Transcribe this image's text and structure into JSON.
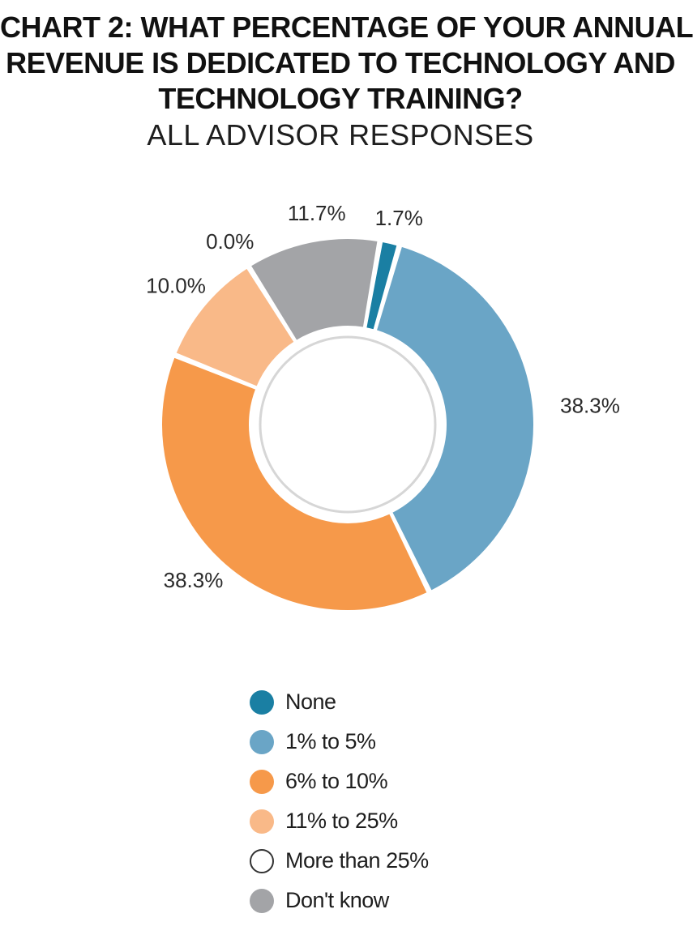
{
  "header": {
    "title_line_1": "CHART 2:  WHAT PERCENTAGE OF YOUR ANNUAL",
    "title_line_2": "REVENUE IS DEDICATED TO TECHNOLOGY AND",
    "title_line_3": "TECHNOLOGY TRAINING?",
    "subtitle": "ALL ADVISOR RESPONSES"
  },
  "chart_data": {
    "type": "pie",
    "variant": "donut",
    "title": "CHART 2:  WHAT PERCENTAGE OF YOUR ANNUAL REVENUE IS DEDICATED TO TECHNOLOGY AND TECHNOLOGY TRAINING?",
    "subtitle": "ALL ADVISOR RESPONSES",
    "legend_placement": "bottom",
    "slices": [
      {
        "name": "None",
        "value": 1.7,
        "label": "1.7%",
        "color": "#1a7fa3"
      },
      {
        "name": "1% to 5%",
        "value": 38.3,
        "label": "38.3%",
        "color": "#6aa5c6"
      },
      {
        "name": "6% to 10%",
        "value": 38.3,
        "label": "38.3%",
        "color": "#f6994a"
      },
      {
        "name": "11% to 25%",
        "value": 10.0,
        "label": "10.0%",
        "color": "#f9b988"
      },
      {
        "name": "More than 25%",
        "value": 0.0,
        "label": "0.0%",
        "color": "#ffffff"
      },
      {
        "name": "Don't know",
        "value": 11.7,
        "label": "11.7%",
        "color": "#a3a4a7"
      }
    ]
  },
  "legend": {
    "items": [
      {
        "label": "None",
        "color": "#1a7fa3"
      },
      {
        "label": "1% to 5%",
        "color": "#6aa5c6"
      },
      {
        "label": "6% to 10%",
        "color": "#f6994a"
      },
      {
        "label": "11% to 25%",
        "color": "#f9b988"
      },
      {
        "label": "More than 25%",
        "color": "#ffffff"
      },
      {
        "label": "Don't know",
        "color": "#a3a4a7"
      }
    ]
  }
}
